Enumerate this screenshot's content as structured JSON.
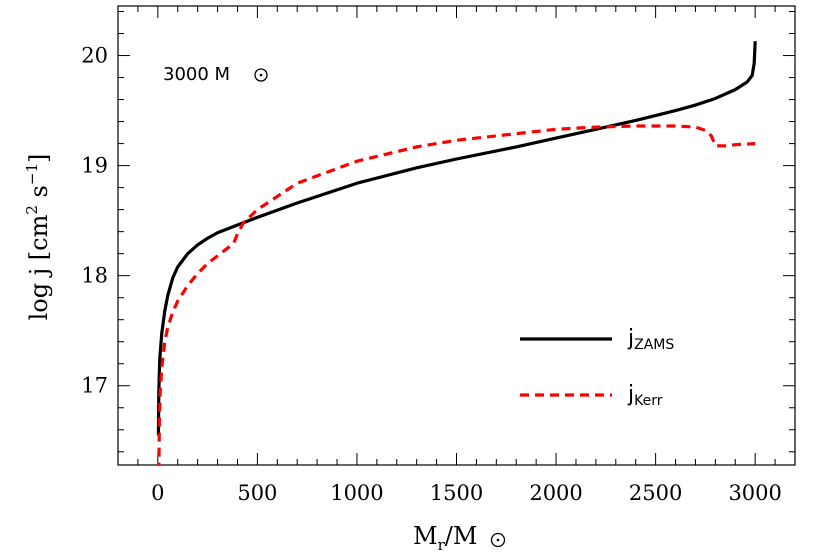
{
  "chart_data": {
    "type": "line",
    "annotation": "3000 M",
    "xlabel": {
      "main": "M",
      "sub": "r",
      "mid": "/M"
    },
    "ylabel": {
      "prefix": "log j [cm",
      "sup1": "2",
      "mid": " s",
      "sup2": "−1",
      "suffix": "]"
    },
    "xlim": [
      -200,
      3200
    ],
    "ylim": [
      16.28,
      20.45
    ],
    "x_ticks": [
      0,
      500,
      1000,
      1500,
      2000,
      2500,
      3000
    ],
    "x_tick_labels": [
      "0",
      "500",
      "1000",
      "1500",
      "2000",
      "2500",
      "3000"
    ],
    "y_ticks": [
      17,
      18,
      19,
      20
    ],
    "y_tick_labels": [
      "17",
      "18",
      "19",
      "20"
    ],
    "grid": false,
    "legend_position": "lower-right",
    "series": [
      {
        "name": "j_ZAMS",
        "label_main": "j",
        "label_sub": "ZAMS",
        "color": "#000000",
        "style": "solid",
        "x": [
          3,
          5,
          10,
          20,
          35,
          50,
          75,
          100,
          150,
          200,
          250,
          300,
          400,
          500,
          700,
          1000,
          1300,
          1500,
          1800,
          2000,
          2200,
          2400,
          2600,
          2700,
          2800,
          2900,
          2960,
          2985,
          2995,
          3000
        ],
        "y": [
          16.55,
          16.95,
          17.25,
          17.48,
          17.68,
          17.82,
          17.98,
          18.08,
          18.2,
          18.28,
          18.34,
          18.39,
          18.46,
          18.53,
          18.66,
          18.84,
          18.98,
          19.06,
          19.17,
          19.25,
          19.33,
          19.41,
          19.5,
          19.55,
          19.61,
          19.69,
          19.76,
          19.82,
          19.93,
          20.13
        ]
      },
      {
        "name": "j_Kerr",
        "label_main": "j",
        "label_sub": "Kerr",
        "color": "#ff0000",
        "style": "dashed",
        "x": [
          5,
          8,
          12,
          20,
          35,
          50,
          75,
          100,
          150,
          200,
          250,
          300,
          350,
          380,
          400,
          430,
          500,
          700,
          1000,
          1300,
          1500,
          1800,
          2000,
          2200,
          2400,
          2600,
          2700,
          2750,
          2780,
          2800,
          2850,
          2900,
          3000
        ],
        "y": [
          16.22,
          16.7,
          16.95,
          17.17,
          17.4,
          17.53,
          17.67,
          17.77,
          17.91,
          18.02,
          18.11,
          18.18,
          18.25,
          18.29,
          18.38,
          18.48,
          18.6,
          18.84,
          19.04,
          19.17,
          19.23,
          19.29,
          19.33,
          19.35,
          19.36,
          19.36,
          19.35,
          19.32,
          19.27,
          19.18,
          19.18,
          19.19,
          19.2
        ]
      }
    ]
  }
}
